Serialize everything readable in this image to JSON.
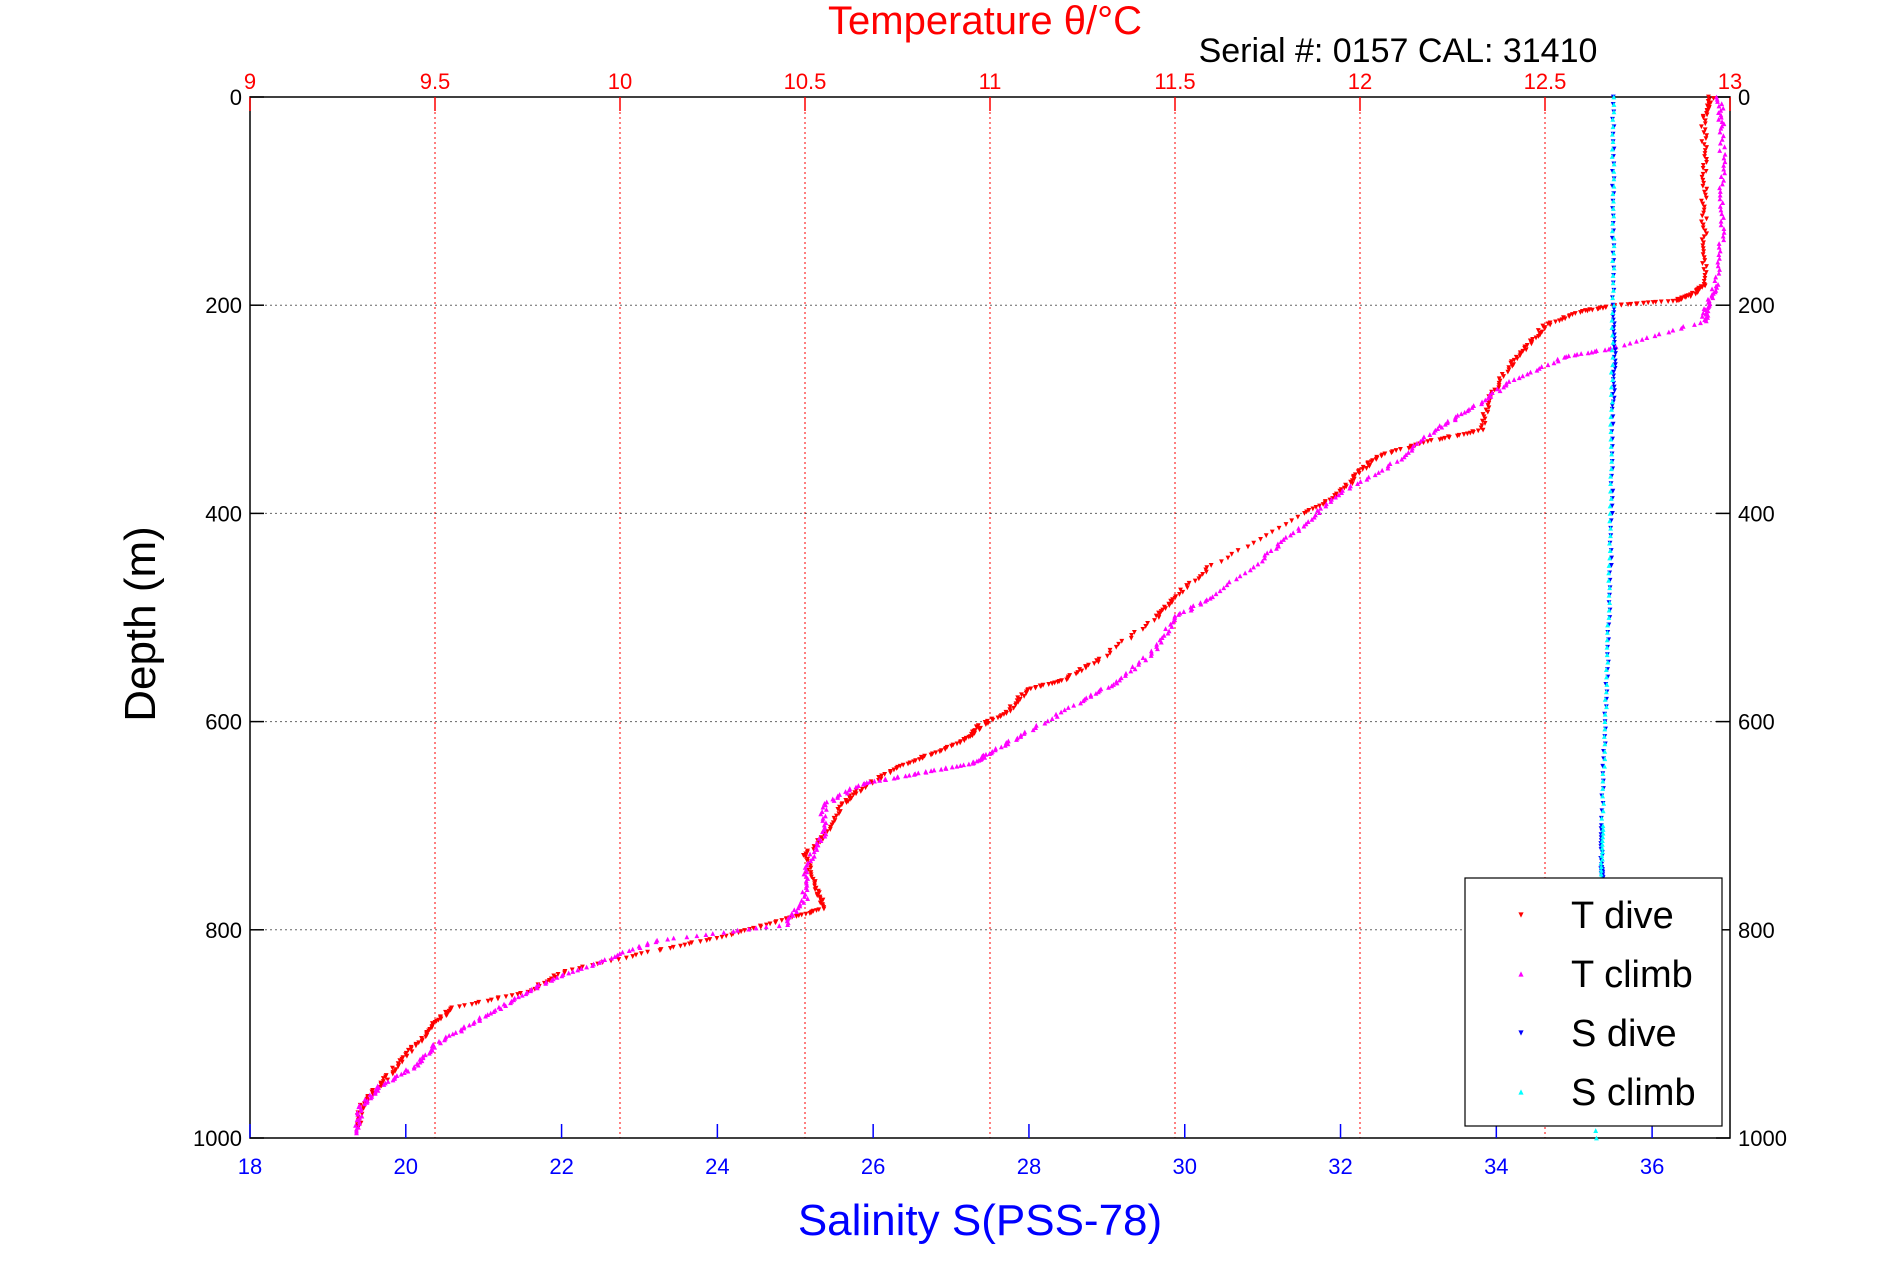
{
  "chart_data": {
    "type": "scatter",
    "title": "Temperature θ/°C",
    "subtitle": "Serial #: 0157  CAL: 31410",
    "xlabel_bottom": "Salinity S(PSS-78)",
    "xlabel_top": "Temperature θ/°C",
    "ylabel": "Depth (m)",
    "x_bottom": {
      "min": 18,
      "max": 37,
      "ticks": [
        18,
        20,
        22,
        24,
        26,
        28,
        30,
        32,
        34,
        36
      ]
    },
    "x_top": {
      "min": 9,
      "max": 13,
      "ticks": [
        9,
        9.5,
        10,
        10.5,
        11,
        11.5,
        12,
        12.5,
        13
      ]
    },
    "y": {
      "min": 0,
      "max": 1000,
      "reversed": true,
      "ticks": [
        0,
        200,
        400,
        600,
        800,
        1000
      ]
    },
    "grid": true,
    "legend_placement": "bottom-right",
    "colors": {
      "T dive": "#ff0000",
      "T climb": "#ff00ff",
      "S dive": "#0000ff",
      "S climb": "#00ffff",
      "top_axis": "#ff0000",
      "bottom_axis": "#0000ff"
    },
    "series": [
      {
        "name": "T dive",
        "axis": "top",
        "marker": "triangle-down",
        "points": [
          [
            12.95,
            0
          ],
          [
            12.93,
            20
          ],
          [
            12.93,
            60
          ],
          [
            12.93,
            100
          ],
          [
            12.93,
            140
          ],
          [
            12.93,
            180
          ],
          [
            12.9,
            190
          ],
          [
            12.85,
            196
          ],
          [
            12.7,
            200
          ],
          [
            12.6,
            206
          ],
          [
            12.5,
            220
          ],
          [
            12.45,
            240
          ],
          [
            12.4,
            260
          ],
          [
            12.35,
            290
          ],
          [
            12.33,
            320
          ],
          [
            12.2,
            330
          ],
          [
            12.05,
            345
          ],
          [
            12.0,
            360
          ],
          [
            11.95,
            380
          ],
          [
            11.85,
            400
          ],
          [
            11.6,
            450
          ],
          [
            11.5,
            480
          ],
          [
            11.45,
            500
          ],
          [
            11.3,
            540
          ],
          [
            11.2,
            560
          ],
          [
            11.1,
            570
          ],
          [
            11.05,
            590
          ],
          [
            10.97,
            605
          ],
          [
            10.95,
            615
          ],
          [
            10.85,
            630
          ],
          [
            10.75,
            645
          ],
          [
            10.65,
            665
          ],
          [
            10.6,
            680
          ],
          [
            10.55,
            710
          ],
          [
            10.5,
            730
          ],
          [
            10.53,
            760
          ],
          [
            10.55,
            780
          ],
          [
            10.45,
            790
          ],
          [
            10.3,
            805
          ],
          [
            10.1,
            820
          ],
          [
            9.85,
            840
          ],
          [
            9.75,
            860
          ],
          [
            9.55,
            875
          ],
          [
            9.5,
            890
          ],
          [
            9.45,
            910
          ],
          [
            9.4,
            930
          ],
          [
            9.35,
            950
          ],
          [
            9.3,
            970
          ],
          [
            9.29,
            990
          ]
        ]
      },
      {
        "name": "T climb",
        "axis": "top",
        "marker": "triangle-up",
        "points": [
          [
            12.97,
            0
          ],
          [
            12.98,
            30
          ],
          [
            12.98,
            80
          ],
          [
            12.98,
            130
          ],
          [
            12.96,
            180
          ],
          [
            12.94,
            200
          ],
          [
            12.93,
            215
          ],
          [
            12.7,
            240
          ],
          [
            12.55,
            250
          ],
          [
            12.4,
            275
          ],
          [
            12.3,
            300
          ],
          [
            12.2,
            320
          ],
          [
            12.1,
            350
          ],
          [
            11.95,
            380
          ],
          [
            11.85,
            410
          ],
          [
            11.75,
            440
          ],
          [
            11.6,
            480
          ],
          [
            11.5,
            500
          ],
          [
            11.45,
            530
          ],
          [
            11.35,
            560
          ],
          [
            11.25,
            580
          ],
          [
            11.1,
            610
          ],
          [
            11.0,
            630
          ],
          [
            10.95,
            640
          ],
          [
            10.8,
            650
          ],
          [
            10.65,
            660
          ],
          [
            10.55,
            680
          ],
          [
            10.55,
            710
          ],
          [
            10.5,
            740
          ],
          [
            10.5,
            770
          ],
          [
            10.45,
            795
          ],
          [
            10.1,
            810
          ],
          [
            9.95,
            830
          ],
          [
            9.8,
            850
          ],
          [
            9.7,
            870
          ],
          [
            9.6,
            890
          ],
          [
            9.5,
            910
          ],
          [
            9.45,
            930
          ],
          [
            9.35,
            950
          ],
          [
            9.3,
            970
          ],
          [
            9.29,
            995
          ]
        ]
      },
      {
        "name": "S dive",
        "axis": "bottom",
        "marker": "triangle-down",
        "points": [
          [
            35.5,
            0
          ],
          [
            35.5,
            100
          ],
          [
            35.5,
            200
          ],
          [
            35.52,
            250
          ],
          [
            35.5,
            300
          ],
          [
            35.48,
            400
          ],
          [
            35.45,
            500
          ],
          [
            35.4,
            600
          ],
          [
            35.35,
            700
          ],
          [
            35.35,
            740
          ],
          [
            35.36,
            750
          ]
        ]
      },
      {
        "name": "S climb",
        "axis": "bottom",
        "marker": "triangle-up",
        "points": [
          [
            35.5,
            0
          ],
          [
            35.5,
            100
          ],
          [
            35.5,
            200
          ],
          [
            35.48,
            300
          ],
          [
            35.47,
            400
          ],
          [
            35.44,
            500
          ],
          [
            35.4,
            600
          ],
          [
            35.36,
            700
          ],
          [
            35.35,
            750
          ],
          [
            35.33,
            800
          ],
          [
            35.3,
            900
          ],
          [
            35.28,
            1000
          ]
        ]
      }
    ]
  }
}
